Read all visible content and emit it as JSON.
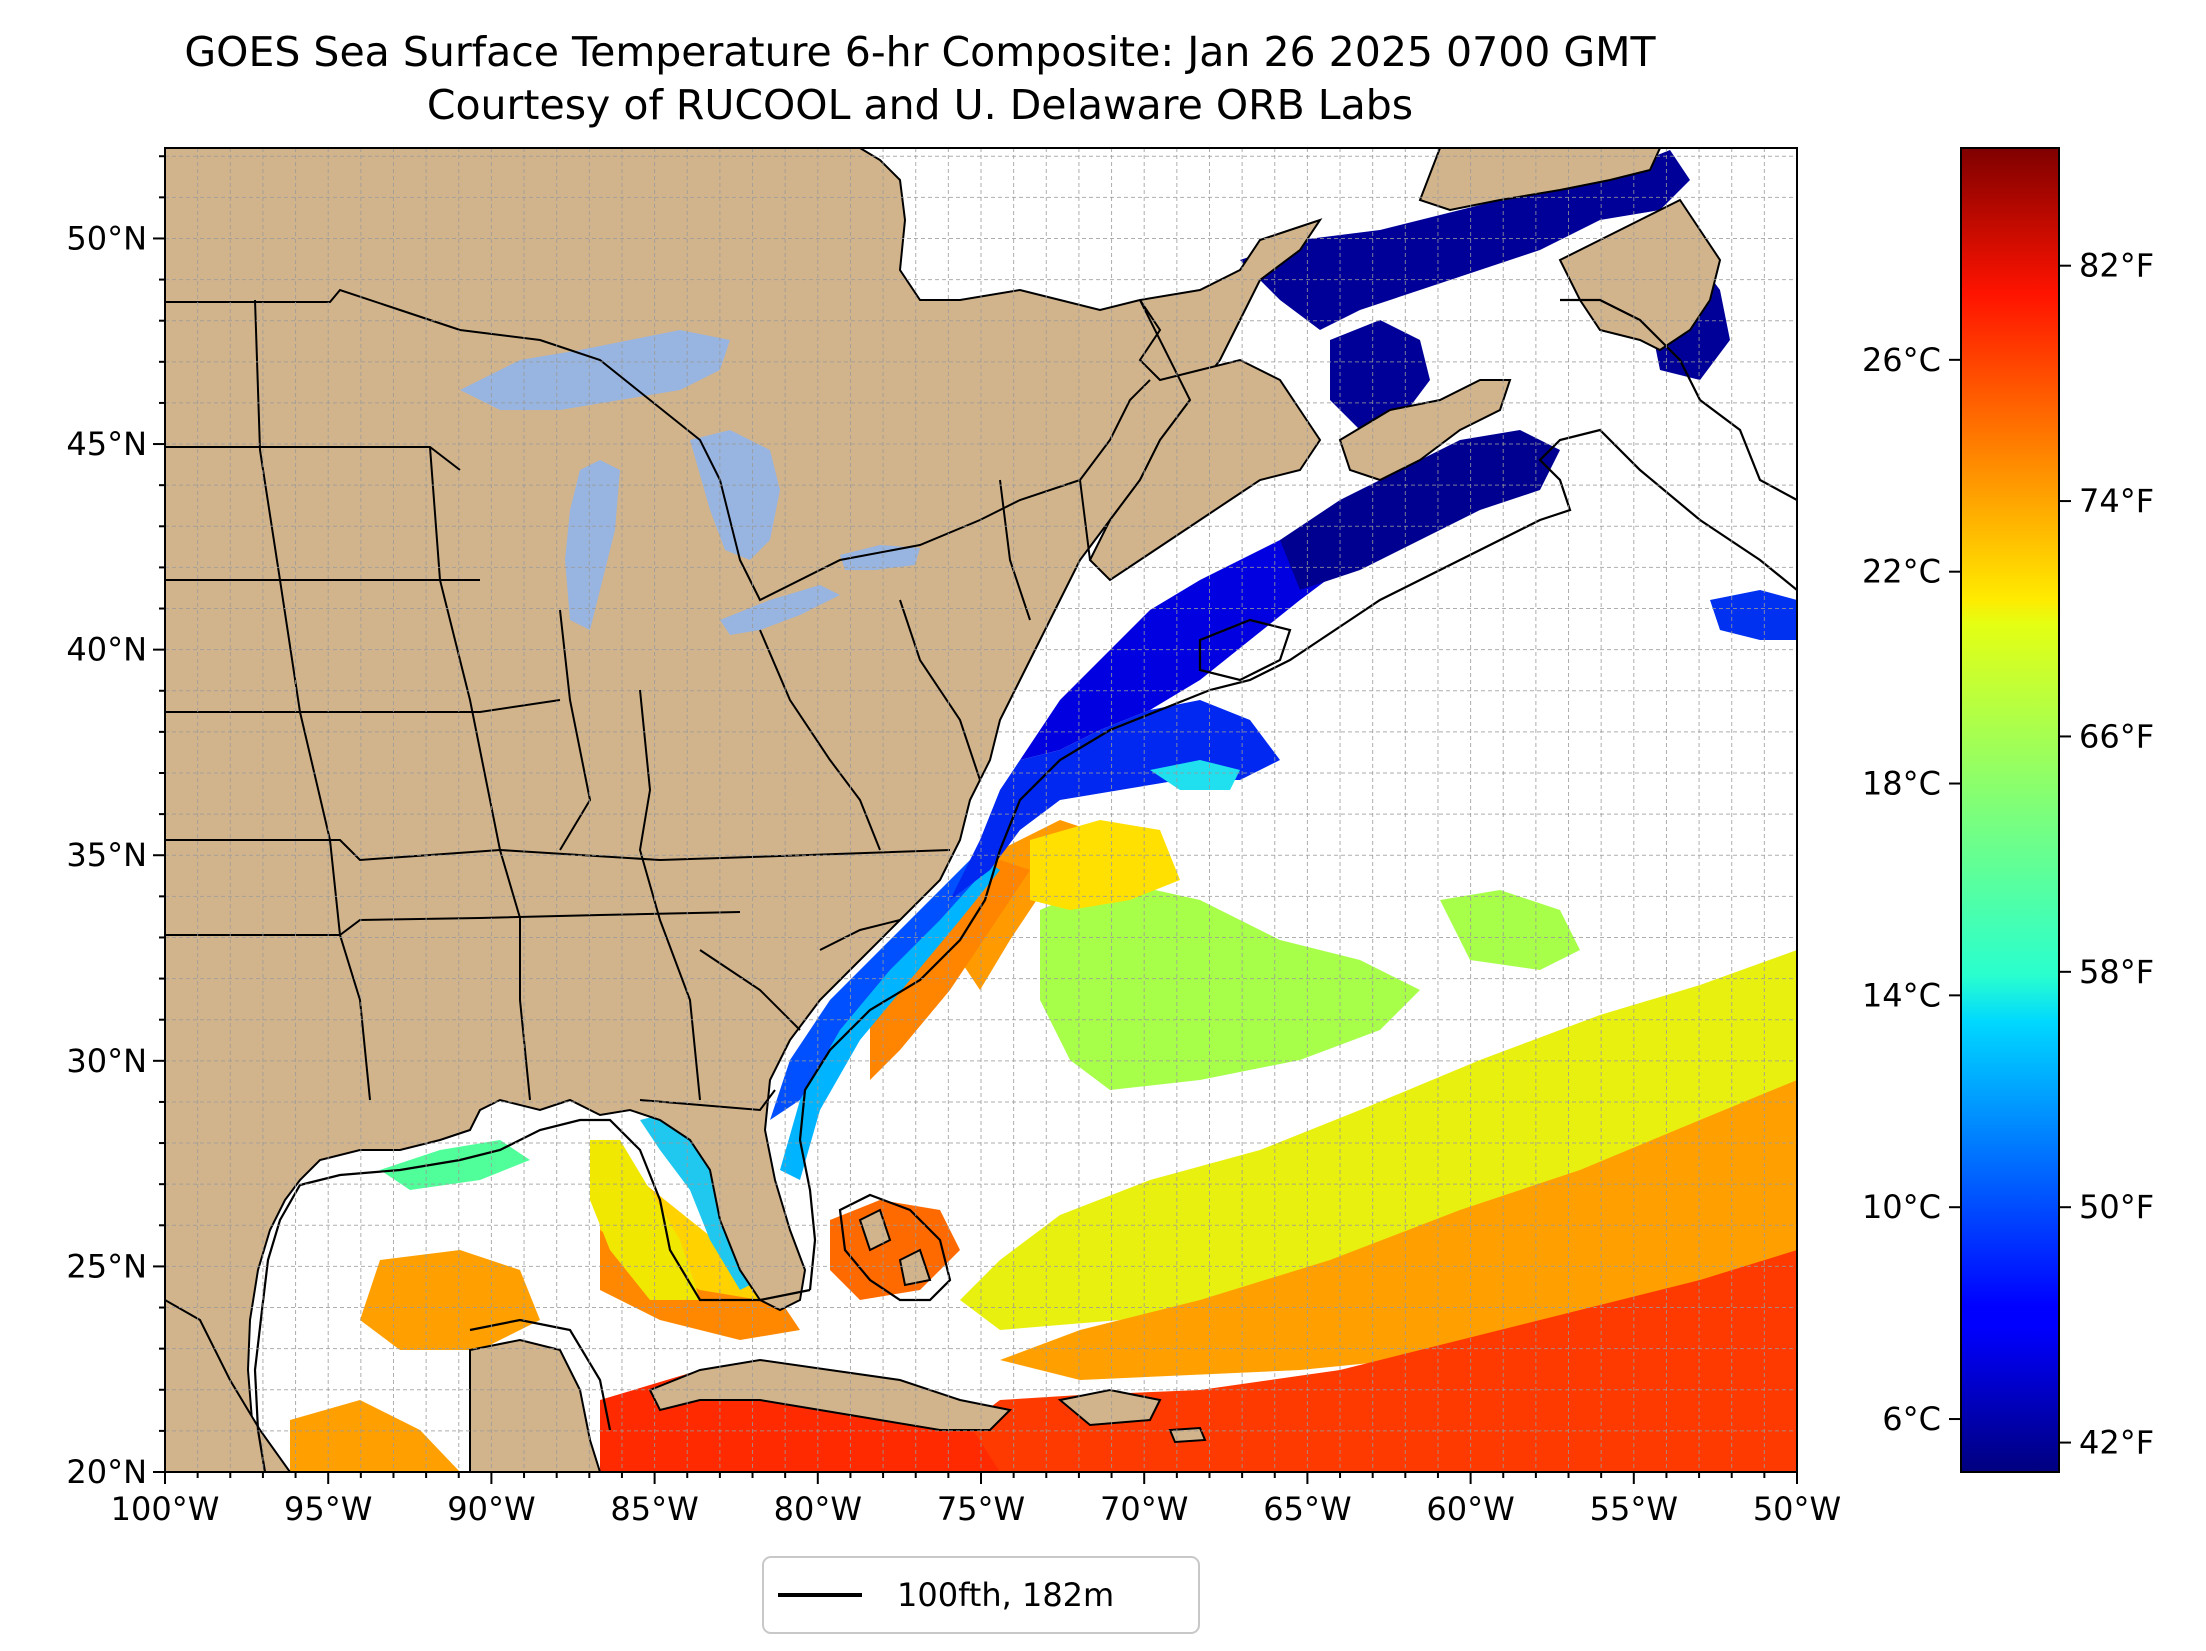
{
  "title": {
    "line1": "GOES Sea Surface Temperature 6-hr Composite: Jan 26 2025 0700 GMT",
    "line2": "Courtesy of RUCOOL and U. Delaware ORB Labs"
  },
  "map": {
    "extent": {
      "lon_min": -100,
      "lon_max": -50,
      "lat_min": 20,
      "lat_max": 52.2
    },
    "lon_ticks": [
      {
        "lon": -100,
        "label": "100°W"
      },
      {
        "lon": -95,
        "label": "95°W"
      },
      {
        "lon": -90,
        "label": "90°W"
      },
      {
        "lon": -85,
        "label": "85°W"
      },
      {
        "lon": -80,
        "label": "80°W"
      },
      {
        "lon": -75,
        "label": "75°W"
      },
      {
        "lon": -70,
        "label": "70°W"
      },
      {
        "lon": -65,
        "label": "65°W"
      },
      {
        "lon": -60,
        "label": "60°W"
      },
      {
        "lon": -55,
        "label": "55°W"
      },
      {
        "lon": -50,
        "label": "50°W"
      }
    ],
    "lat_ticks": [
      {
        "lat": 20,
        "label": "20°N"
      },
      {
        "lat": 25,
        "label": "25°N"
      },
      {
        "lat": 30,
        "label": "30°N"
      },
      {
        "lat": 35,
        "label": "35°N"
      },
      {
        "lat": 40,
        "label": "40°N"
      },
      {
        "lat": 45,
        "label": "45°N"
      },
      {
        "lat": 50,
        "label": "50°N"
      }
    ],
    "grid": true,
    "land_color": "#d2b48c",
    "lake_color": "#98b4e0",
    "ocean_color": "#ffffff"
  },
  "colorbar": {
    "colormap": "jet",
    "range_c": [
      5,
      30
    ],
    "celsius_ticks": [
      {
        "value": 6,
        "label": "6°C"
      },
      {
        "value": 10,
        "label": "10°C"
      },
      {
        "value": 14,
        "label": "14°C"
      },
      {
        "value": 18,
        "label": "18°C"
      },
      {
        "value": 22,
        "label": "22°C"
      },
      {
        "value": 26,
        "label": "26°C"
      }
    ],
    "fahrenheit_ticks": [
      {
        "value": 42,
        "label": "42°F"
      },
      {
        "value": 50,
        "label": "50°F"
      },
      {
        "value": 58,
        "label": "58°F"
      },
      {
        "value": 66,
        "label": "66°F"
      },
      {
        "value": 74,
        "label": "74°F"
      },
      {
        "value": 82,
        "label": "82°F"
      }
    ]
  },
  "legend": {
    "entries": [
      {
        "label": "100fth, 182m",
        "color": "#000000"
      }
    ],
    "placement": "bottom-center"
  }
}
